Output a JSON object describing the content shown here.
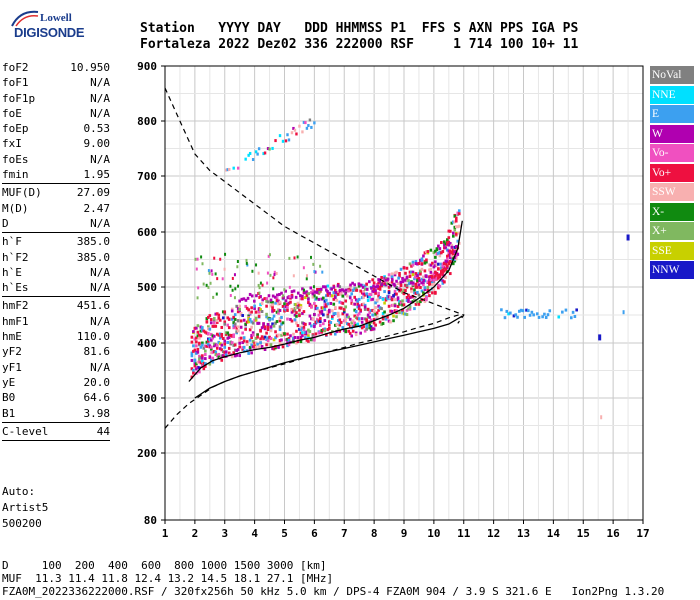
{
  "logo": {
    "line1": "Lowell",
    "line2": "DIGISONDE"
  },
  "header": {
    "row1": "Station   YYYY DAY   DDD HHMMSS P1  FFS S AXN PPS IGA PS",
    "row2": "Fortaleza 2022 Dez02 336 222000 RSF     1 714 100 10+ 11"
  },
  "params": {
    "group1": [
      {
        "label": "foF2",
        "value": "10.950"
      },
      {
        "label": "foF1",
        "value": "N/A"
      },
      {
        "label": "foF1p",
        "value": "N/A"
      },
      {
        "label": "foE",
        "value": "N/A"
      },
      {
        "label": "foEp",
        "value": "0.53"
      },
      {
        "label": "fxI",
        "value": "9.00"
      },
      {
        "label": "foEs",
        "value": "N/A"
      },
      {
        "label": "fmin",
        "value": "1.95"
      }
    ],
    "group2": [
      {
        "label": "MUF(D)",
        "value": "27.09"
      },
      {
        "label": "M(D)",
        "value": "2.47"
      },
      {
        "label": "D",
        "value": "N/A"
      }
    ],
    "group3": [
      {
        "label": "h`F",
        "value": "385.0"
      },
      {
        "label": "h`F2",
        "value": "385.0"
      },
      {
        "label": "h`E",
        "value": "N/A"
      },
      {
        "label": "h`Es",
        "value": "N/A"
      }
    ],
    "group4": [
      {
        "label": "hmF2",
        "value": "451.6"
      },
      {
        "label": "hmF1",
        "value": "N/A"
      },
      {
        "label": "hmE",
        "value": "110.0"
      },
      {
        "label": "yF2",
        "value": "81.6"
      },
      {
        "label": "yF1",
        "value": "N/A"
      },
      {
        "label": "yE",
        "value": "20.0"
      },
      {
        "label": "B0",
        "value": "64.6"
      },
      {
        "label": "B1",
        "value": "3.98"
      }
    ],
    "group5": [
      {
        "label": "C-level",
        "value": "44"
      }
    ]
  },
  "auto": {
    "line1": "Auto:",
    "line2": "Artist5",
    "line3": "500200"
  },
  "legend": [
    {
      "label": "NoVal",
      "color": "#808080"
    },
    {
      "label": "NNE",
      "color": "#00e0ff"
    },
    {
      "label": "E",
      "color": "#3ca0f0"
    },
    {
      "label": "W",
      "color": "#b000b0"
    },
    {
      "label": "Vo-",
      "color": "#f050c0"
    },
    {
      "label": "Vo+",
      "color": "#ee1040"
    },
    {
      "label": "SSW",
      "color": "#f8b0b0"
    },
    {
      "label": "X-",
      "color": "#108a10"
    },
    {
      "label": "X+",
      "color": "#80b860"
    },
    {
      "label": "SSE",
      "color": "#c8d000"
    },
    {
      "label": "NNW",
      "color": "#1818c8"
    }
  ],
  "footer": {
    "line1": "D     100  200  400  600  800 1000 1500 3000 [km]",
    "line2": "MUF  11.3 11.4 11.8 12.4 13.2 14.5 18.1 27.1 [MHz]",
    "line3": "FZA0M_2022336222000.RSF / 320fx256h 50 kHz 5.0 km / DPS-4 FZA0M 904 / 3.9 S 321.6 E   Ion2Png 1.3.20"
  },
  "chart_data": {
    "type": "scatter",
    "x_ticks": [
      "1",
      "2",
      "3",
      "4",
      "5",
      "6",
      "7",
      "8",
      "9",
      "10",
      "11",
      "12",
      "13",
      "14",
      "15",
      "16",
      "17"
    ],
    "y_ticks": [
      "80",
      "200",
      "300",
      "400",
      "500",
      "600",
      "700",
      "800",
      "900"
    ],
    "xlim": [
      1,
      17
    ],
    "ylim": [
      80,
      900
    ],
    "grid": true,
    "legend_position": "right",
    "trace_profile": {
      "x": [
        1.0,
        1.5,
        2.0,
        2.5,
        3.0,
        3.5,
        4.0,
        4.5,
        5.0,
        5.5,
        6.0,
        6.5,
        7.0,
        7.5,
        8.0,
        8.5,
        9.0,
        9.5,
        10.0,
        10.5,
        11.0,
        10.8
      ],
      "y": [
        860,
        800,
        740,
        710,
        690,
        670,
        650,
        630,
        610,
        595,
        580,
        565,
        550,
        535,
        520,
        505,
        490,
        480,
        470,
        460,
        450,
        435
      ]
    },
    "virtual_height_curve": {
      "x": [
        1.8,
        2.2,
        2.6,
        3.0,
        3.5,
        4.0,
        4.5,
        5.0,
        5.5,
        6.0,
        6.5,
        7.0,
        7.5,
        8.0,
        8.5,
        9.0,
        9.5,
        10.0,
        10.5,
        10.8,
        10.95
      ],
      "y": [
        330,
        355,
        368,
        375,
        382,
        388,
        392,
        398,
        405,
        410,
        418,
        425,
        430,
        440,
        450,
        462,
        480,
        500,
        530,
        570,
        620
      ]
    },
    "lower_dashed": {
      "x": [
        1.0,
        1.4,
        1.8,
        2.2,
        2.6,
        3.0,
        3.5,
        4.0,
        4.5,
        5.0,
        5.5,
        6.0,
        6.5,
        7.0,
        7.5,
        8.0,
        8.5,
        9.0,
        9.5,
        10.0,
        10.5,
        10.95
      ],
      "y": [
        245,
        270,
        290,
        305,
        320,
        330,
        340,
        348,
        355,
        362,
        370,
        378,
        385,
        392,
        400,
        406,
        413,
        420,
        428,
        435,
        445,
        452
      ]
    },
    "solid_lower": {
      "x": [
        2.0,
        2.5,
        3.0,
        3.5,
        4.0,
        4.5,
        5.0,
        5.5,
        6.0,
        6.5,
        7.0,
        7.5,
        8.0,
        8.5,
        9.0,
        9.5,
        10.0,
        10.5,
        10.95
      ],
      "y": [
        300,
        318,
        330,
        340,
        348,
        356,
        364,
        371,
        378,
        384,
        390,
        396,
        402,
        408,
        414,
        420,
        426,
        434,
        448
      ]
    },
    "echo_clusters": [
      {
        "x_from": 2.0,
        "x_to": 10.9,
        "y_from": 380,
        "y_to": 480,
        "note": "F2 trace"
      },
      {
        "x_from": 3.0,
        "x_to": 6.0,
        "y_from": 700,
        "y_to": 800,
        "note": "multi-hop"
      },
      {
        "x_from": 12.2,
        "x_to": 14.8,
        "y_from": 445,
        "y_to": 460,
        "note": "scatter"
      }
    ]
  }
}
